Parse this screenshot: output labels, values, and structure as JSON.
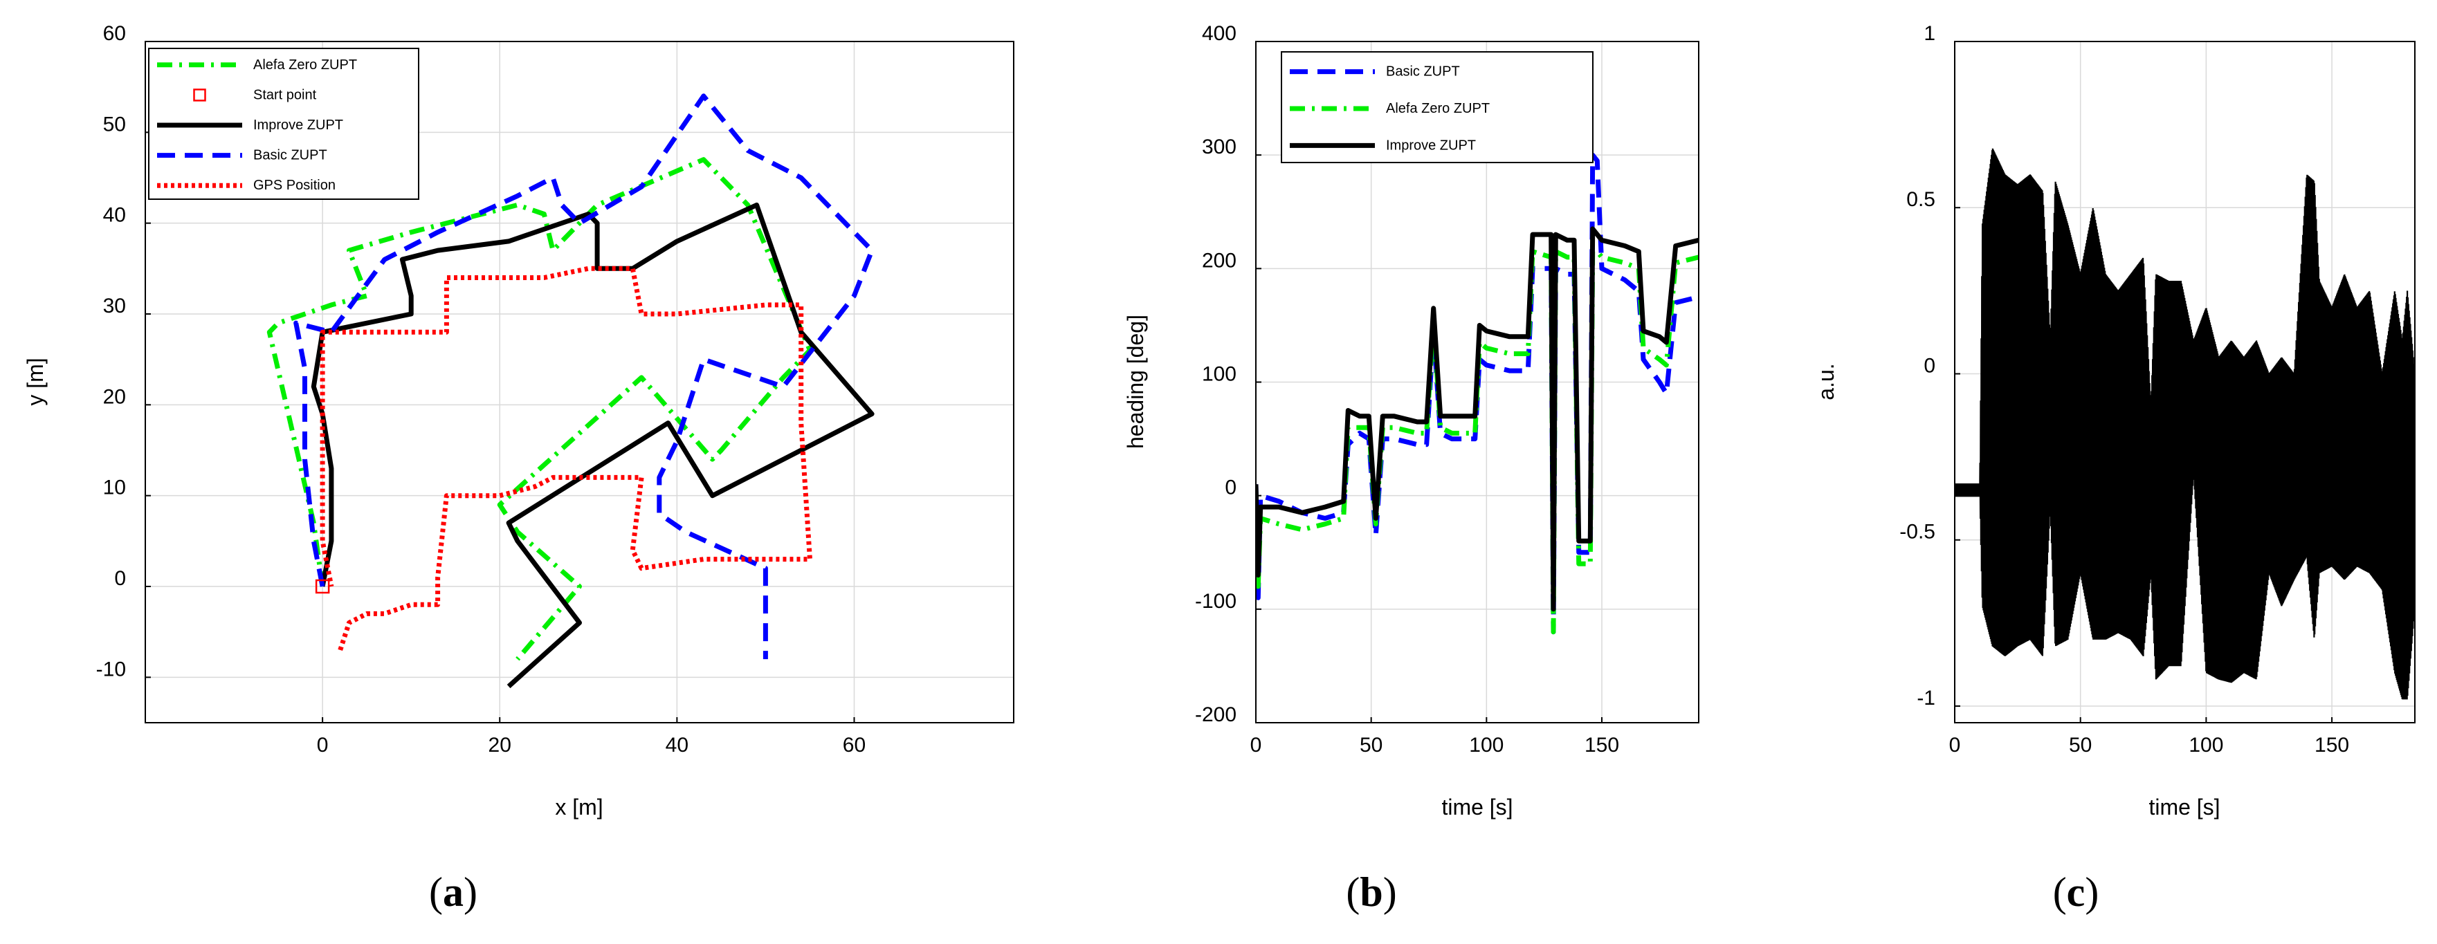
{
  "figure": {
    "captions": [
      "(a)",
      "(b)",
      "(c)"
    ]
  },
  "colors": {
    "alefa": "#00ee00",
    "basic": "#0000ff",
    "improve": "#000000",
    "gps": "#ff0000",
    "start": "#ff0000",
    "grid": "#d9d9d9"
  },
  "chart_data": [
    {
      "type": "line",
      "id": "a",
      "title": "",
      "xlabel": "x [m]",
      "ylabel": "y [m]",
      "xlim": [
        -20,
        78
      ],
      "ylim": [
        -15,
        60
      ],
      "xticks": [
        0,
        20,
        40,
        60
      ],
      "yticks": [
        -10,
        0,
        10,
        20,
        30,
        40,
        50,
        60
      ],
      "xtick_labels": [
        "0",
        "20",
        "40",
        "60"
      ],
      "ytick_labels": [
        "-10",
        "0",
        "10",
        "20",
        "30",
        "40",
        "50",
        "60"
      ],
      "grid": true,
      "legend_position": "top-left",
      "legend": [
        "Alefa Zero ZUPT",
        "Start point",
        "Improve ZUPT",
        "Basic ZUPT",
        "GPS Position"
      ],
      "start_point": {
        "x": 0,
        "y": 0
      },
      "series": [
        {
          "name": "Alefa Zero ZUPT",
          "style": "dashdot",
          "color_key": "alefa",
          "x": [
            0,
            -1,
            -6,
            -5,
            1,
            5,
            3,
            10,
            22,
            25,
            26,
            31,
            43,
            48,
            55,
            52,
            45,
            44,
            36,
            20,
            22,
            29,
            29,
            22
          ],
          "y": [
            0,
            7,
            28,
            29,
            31,
            32,
            37,
            39,
            42,
            41,
            37,
            42,
            47,
            42,
            26,
            23,
            15,
            14,
            23,
            9,
            6,
            0,
            0,
            -8
          ]
        },
        {
          "name": "Improve ZUPT",
          "style": "solid",
          "color_key": "improve",
          "x": [
            0,
            1,
            1,
            0,
            -1,
            0,
            10,
            10,
            9,
            13,
            21,
            30,
            31,
            31,
            35,
            40,
            49,
            54,
            62,
            44,
            39,
            21,
            22,
            29,
            21
          ],
          "y": [
            0,
            5,
            13,
            19,
            22,
            28,
            30,
            32,
            36,
            37,
            38,
            41,
            40,
            35,
            35,
            38,
            42,
            28,
            19,
            10,
            18,
            7,
            5,
            -4,
            -11
          ]
        },
        {
          "name": "Basic ZUPT",
          "style": "dashed",
          "color_key": "basic",
          "x": [
            0,
            -1,
            -2,
            -2,
            -3,
            1,
            4,
            7,
            13,
            22,
            26,
            27,
            29,
            36,
            43,
            48,
            54,
            62,
            60,
            52,
            43,
            40,
            38,
            38,
            41,
            50,
            50
          ],
          "y": [
            0,
            5,
            14,
            24,
            29,
            28,
            32,
            36,
            39,
            43,
            45,
            42,
            40,
            44,
            54,
            48,
            45,
            37,
            32,
            22,
            25,
            16,
            12,
            8,
            6,
            2,
            -8
          ]
        },
        {
          "name": "GPS Position",
          "style": "dotted",
          "color_key": "gps",
          "x": [
            2,
            3,
            5,
            7,
            10,
            13,
            13,
            14,
            15,
            20,
            24,
            26,
            29,
            36,
            35,
            36,
            43,
            52,
            55,
            54,
            54,
            50,
            40,
            36,
            35,
            30,
            25,
            20,
            14,
            14,
            14,
            8,
            0,
            0,
            0,
            0,
            1,
            1
          ],
          "y": [
            -7,
            -4,
            -3,
            -3,
            -2,
            -2,
            1,
            10,
            10,
            10,
            11,
            12,
            12,
            12,
            4,
            2,
            3,
            3,
            3,
            18,
            31,
            31,
            30,
            30,
            35,
            35,
            34,
            34,
            34,
            31,
            28,
            28,
            28,
            20,
            10,
            5,
            0,
            0
          ]
        }
      ]
    },
    {
      "type": "line",
      "id": "b",
      "title": "",
      "xlabel": "time [s]",
      "ylabel": "heading [deg]",
      "xlim": [
        0,
        192
      ],
      "ylim": [
        -200,
        400
      ],
      "xticks": [
        0,
        50,
        100,
        150
      ],
      "yticks": [
        -200,
        -100,
        0,
        100,
        200,
        300,
        400
      ],
      "xtick_labels": [
        "0",
        "50",
        "100",
        "150"
      ],
      "ytick_labels": [
        "-200",
        "-100",
        "0",
        "100",
        "200",
        "300",
        "400"
      ],
      "grid": true,
      "legend_position": "top-left",
      "legend": [
        "Basic ZUPT",
        "Alefa Zero ZUPT",
        "Improve ZUPT"
      ],
      "series": [
        {
          "name": "Basic ZUPT",
          "style": "dashed",
          "color_key": "basic",
          "x": [
            0,
            1,
            2,
            10,
            20,
            30,
            38,
            40,
            45,
            49,
            52,
            55,
            60,
            70,
            74,
            77,
            80,
            85,
            95,
            97,
            100,
            110,
            118,
            120,
            128,
            129,
            130,
            135,
            138,
            140,
            145,
            146,
            148,
            150,
            160,
            166,
            168,
            175,
            178,
            182,
            192
          ],
          "y": [
            10,
            -90,
            0,
            -5,
            -15,
            -20,
            -15,
            45,
            55,
            50,
            -35,
            50,
            50,
            45,
            45,
            145,
            55,
            50,
            50,
            120,
            115,
            110,
            110,
            200,
            200,
            -120,
            200,
            195,
            195,
            -50,
            -50,
            300,
            295,
            200,
            190,
            180,
            120,
            100,
            90,
            170,
            175
          ]
        },
        {
          "name": "Alefa Zero ZUPT",
          "style": "dashdot",
          "color_key": "alefa",
          "x": [
            0,
            1,
            2,
            10,
            20,
            30,
            38,
            40,
            45,
            49,
            52,
            55,
            60,
            70,
            74,
            77,
            80,
            85,
            95,
            97,
            100,
            110,
            118,
            120,
            128,
            129,
            130,
            135,
            138,
            140,
            145,
            146,
            148,
            150,
            160,
            166,
            168,
            175,
            178,
            182,
            192
          ],
          "y": [
            5,
            -80,
            -20,
            -25,
            -30,
            -25,
            -20,
            60,
            60,
            60,
            -25,
            60,
            60,
            55,
            55,
            155,
            60,
            55,
            55,
            135,
            130,
            125,
            125,
            215,
            210,
            -120,
            215,
            210,
            210,
            -60,
            -60,
            215,
            215,
            210,
            205,
            200,
            130,
            120,
            115,
            205,
            210
          ]
        },
        {
          "name": "Improve ZUPT",
          "style": "solid",
          "color_key": "improve",
          "x": [
            0,
            1,
            2,
            10,
            20,
            30,
            38,
            40,
            45,
            49,
            52,
            55,
            60,
            70,
            74,
            77,
            80,
            85,
            95,
            97,
            100,
            110,
            118,
            120,
            128,
            129,
            130,
            135,
            138,
            140,
            145,
            146,
            148,
            150,
            160,
            166,
            168,
            175,
            178,
            182,
            192
          ],
          "y": [
            10,
            -70,
            -10,
            -10,
            -15,
            -10,
            -5,
            75,
            70,
            70,
            -20,
            70,
            70,
            65,
            65,
            165,
            70,
            70,
            70,
            150,
            145,
            140,
            140,
            230,
            230,
            -100,
            230,
            225,
            225,
            -40,
            -40,
            235,
            230,
            225,
            220,
            215,
            145,
            140,
            135,
            220,
            225
          ]
        }
      ]
    },
    {
      "type": "line",
      "id": "c",
      "title": "",
      "xlabel": "time [s]",
      "ylabel": "a.u.",
      "xlim": [
        0,
        183
      ],
      "ylim": [
        -1.05,
        1.0
      ],
      "xticks": [
        0,
        50,
        100,
        150
      ],
      "yticks": [
        -1,
        -0.5,
        0,
        0.5,
        1
      ],
      "xtick_labels": [
        "0",
        "50",
        "100",
        "150"
      ],
      "ytick_labels": [
        "-1",
        "-0.5",
        "0",
        "0.5",
        "1"
      ],
      "grid": true,
      "legend_position": "none",
      "legend": [],
      "series": [
        {
          "name": "signal",
          "style": "solid",
          "color_key": "improve",
          "envelope": {
            "t": [
              0,
              10,
              11,
              15,
              20,
              25,
              30,
              35,
              38,
              40,
              45,
              50,
              55,
              60,
              65,
              70,
              75,
              78,
              80,
              85,
              90,
              95,
              100,
              105,
              110,
              115,
              120,
              125,
              130,
              135,
              140,
              143,
              145,
              150,
              155,
              160,
              165,
              170,
              175,
              178,
              180,
              183
            ],
            "upper": [
              -0.33,
              -0.33,
              0.45,
              0.68,
              0.6,
              0.57,
              0.6,
              0.55,
              0.1,
              0.58,
              0.45,
              0.3,
              0.5,
              0.3,
              0.25,
              0.3,
              0.35,
              -0.1,
              0.3,
              0.28,
              0.28,
              0.1,
              0.2,
              0.05,
              0.1,
              0.05,
              0.1,
              0.0,
              0.05,
              0.0,
              0.6,
              0.58,
              0.28,
              0.2,
              0.3,
              0.2,
              0.25,
              0.0,
              0.25,
              0.1,
              0.25,
              0.0
            ],
            "lower": [
              -0.37,
              -0.37,
              -0.7,
              -0.82,
              -0.85,
              -0.82,
              -0.8,
              -0.85,
              -0.4,
              -0.82,
              -0.8,
              -0.6,
              -0.8,
              -0.8,
              -0.78,
              -0.8,
              -0.85,
              -0.6,
              -0.92,
              -0.88,
              -0.88,
              -0.3,
              -0.9,
              -0.92,
              -0.93,
              -0.9,
              -0.92,
              -0.6,
              -0.7,
              -0.62,
              -0.55,
              -0.8,
              -0.6,
              -0.58,
              -0.62,
              -0.58,
              -0.6,
              -0.65,
              -0.9,
              -0.98,
              -0.98,
              -0.7
            ]
          }
        }
      ]
    }
  ]
}
